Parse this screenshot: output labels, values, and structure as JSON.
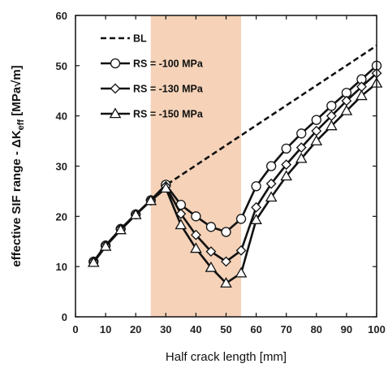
{
  "chart_data": {
    "type": "line",
    "xlabel": "Half crack length [mm]",
    "ylabel_parts": {
      "prefix": "effective SIF range - ΔK",
      "subscript": "eff",
      "suffix": " [MPa√m]"
    },
    "xlim": [
      0,
      100
    ],
    "ylim": [
      0,
      60
    ],
    "xticks": [
      0,
      10,
      20,
      30,
      40,
      50,
      60,
      70,
      80,
      90,
      100
    ],
    "yticks": [
      0,
      10,
      20,
      30,
      40,
      50,
      60
    ],
    "grid": false,
    "legend_position": "top-left",
    "shaded_region": {
      "x_start": 25,
      "x_end": 55,
      "color": "#f5d2b8"
    },
    "series": [
      {
        "name": "BL",
        "style": "dashed",
        "marker": "none",
        "color": "#111111",
        "x": [
          6,
          10,
          15,
          20,
          25,
          30,
          100
        ],
        "y": [
          11,
          14.2,
          17.5,
          20.4,
          23.2,
          26.2,
          54
        ]
      },
      {
        "name": "RS = -100 MPa",
        "style": "solid",
        "marker": "circle",
        "color": "#111111",
        "x": [
          6,
          10,
          15,
          20,
          25,
          30,
          35,
          40,
          45,
          50,
          55,
          60,
          65,
          70,
          75,
          80,
          85,
          90,
          95,
          100
        ],
        "y": [
          11,
          14.2,
          17.5,
          20.4,
          23.2,
          26.3,
          22.3,
          20,
          17.9,
          16.9,
          19.5,
          26,
          30,
          33.5,
          36.5,
          39.2,
          42,
          44.6,
          47.3,
          50
        ]
      },
      {
        "name": "RS = -130 MPa",
        "style": "solid",
        "marker": "diamond",
        "color": "#111111",
        "x": [
          6,
          10,
          15,
          20,
          25,
          30,
          35,
          40,
          45,
          50,
          55,
          60,
          65,
          70,
          75,
          80,
          85,
          90,
          95,
          100
        ],
        "y": [
          11,
          14.2,
          17.5,
          20.4,
          23.2,
          26,
          20.5,
          16.3,
          13,
          11,
          13.2,
          21.8,
          26.5,
          30.3,
          33.7,
          37,
          40,
          43,
          45.8,
          48.5
        ]
      },
      {
        "name": "RS = -150 MPa",
        "style": "solid",
        "marker": "triangle",
        "color": "#111111",
        "x": [
          6,
          10,
          15,
          20,
          25,
          30,
          35,
          40,
          45,
          50,
          55,
          60,
          65,
          70,
          75,
          80,
          85,
          90,
          95,
          100
        ],
        "y": [
          10.8,
          14,
          17.3,
          20.3,
          23.1,
          25.6,
          18.3,
          13.6,
          9.8,
          6.7,
          8.7,
          19.3,
          23.8,
          28,
          31.5,
          35,
          38,
          41,
          44,
          46.5
        ]
      }
    ]
  }
}
